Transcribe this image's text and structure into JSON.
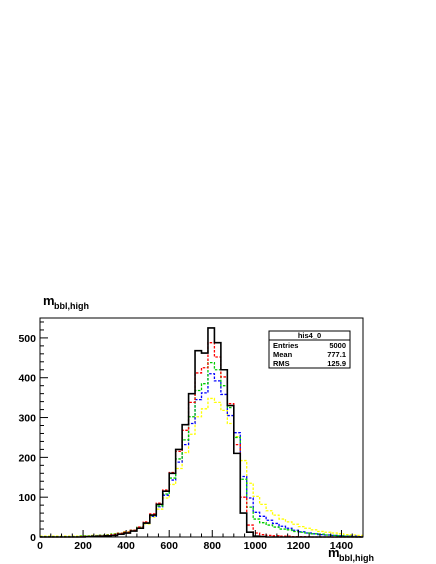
{
  "chart_data": {
    "type": "histogram",
    "title_main": "m",
    "title_sub": "bbl,high",
    "xlabel_main": "m",
    "xlabel_sub": "bbl,high",
    "xlim": [
      0,
      1500
    ],
    "ylim": [
      0,
      550
    ],
    "x_ticks": [
      0,
      200,
      400,
      600,
      800,
      1000,
      1200,
      1400
    ],
    "y_ticks": [
      0,
      100,
      200,
      300,
      400,
      500
    ],
    "bin_width": 30,
    "grid": false,
    "stats_box": {
      "name": "his4_0",
      "rows": [
        {
          "label": "Entries",
          "value": "5000"
        },
        {
          "label": "Mean",
          "value": "777.1"
        },
        {
          "label": "RMS",
          "value": "125.9"
        }
      ]
    },
    "series": [
      {
        "color": "#000000",
        "style": "solid",
        "values": [
          0,
          0,
          0,
          0,
          0,
          0,
          0,
          1,
          1,
          2,
          3,
          4,
          7,
          10,
          15,
          22,
          35,
          55,
          82,
          115,
          160,
          220,
          282,
          360,
          468,
          462,
          525,
          488,
          420,
          330,
          210,
          60,
          12,
          2,
          1,
          0,
          0,
          0,
          0,
          0,
          0,
          0,
          0,
          0,
          0,
          0,
          0,
          0,
          0,
          0
        ]
      },
      {
        "color": "#ff0000",
        "style": "dashed",
        "values": [
          0,
          0,
          0,
          0,
          0,
          0,
          1,
          1,
          2,
          3,
          4,
          6,
          9,
          12,
          17,
          25,
          38,
          58,
          85,
          118,
          162,
          215,
          268,
          338,
          412,
          425,
          488,
          452,
          402,
          335,
          232,
          100,
          30,
          10,
          6,
          4,
          3,
          2,
          2,
          1,
          1,
          1,
          0,
          0,
          0,
          0,
          0,
          0,
          0,
          0
        ]
      },
      {
        "color": "#00cc00",
        "style": "dashed",
        "values": [
          1,
          1,
          1,
          1,
          1,
          1,
          2,
          2,
          3,
          4,
          5,
          7,
          9,
          12,
          17,
          24,
          35,
          54,
          78,
          108,
          148,
          196,
          244,
          302,
          368,
          385,
          438,
          420,
          380,
          325,
          250,
          145,
          75,
          45,
          36,
          30,
          25,
          20,
          18,
          14,
          12,
          10,
          8,
          7,
          5,
          4,
          3,
          2,
          1,
          0
        ]
      },
      {
        "color": "#0000ff",
        "style": "dashed",
        "values": [
          1,
          1,
          1,
          1,
          1,
          1,
          2,
          2,
          3,
          4,
          5,
          7,
          9,
          12,
          17,
          24,
          35,
          52,
          76,
          105,
          143,
          188,
          232,
          285,
          345,
          362,
          410,
          392,
          358,
          305,
          262,
          152,
          98,
          62,
          52,
          42,
          34,
          27,
          22,
          17,
          13,
          10,
          8,
          6,
          5,
          4,
          3,
          2,
          2,
          1
        ]
      },
      {
        "color": "#ffff00",
        "style": "dashed",
        "values": [
          2,
          2,
          2,
          2,
          2,
          2,
          3,
          3,
          4,
          5,
          6,
          8,
          10,
          13,
          17,
          24,
          33,
          50,
          70,
          98,
          132,
          172,
          212,
          258,
          302,
          322,
          348,
          338,
          318,
          285,
          252,
          192,
          135,
          102,
          82,
          66,
          55,
          45,
          38,
          32,
          26,
          22,
          18,
          14,
          12,
          10,
          8,
          6,
          5,
          4
        ]
      }
    ]
  }
}
